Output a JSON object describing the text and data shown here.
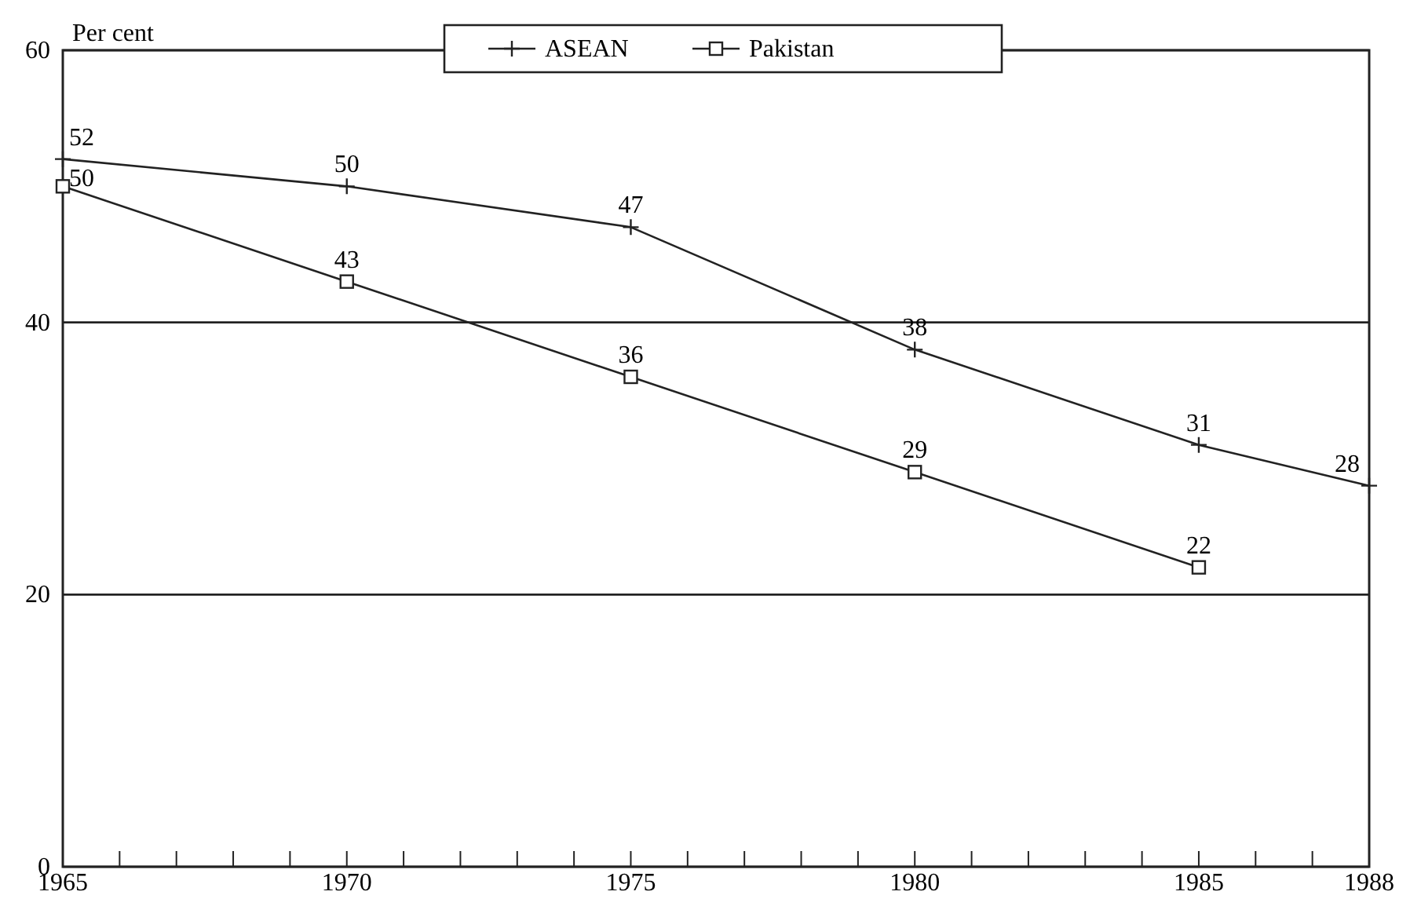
{
  "chart_data": {
    "type": "line",
    "ylabel": "Per cent",
    "x": [
      1965,
      1970,
      1975,
      1980,
      1985,
      1988
    ],
    "series": [
      {
        "name": "ASEAN",
        "color": "#222222",
        "marker": "cross",
        "values": [
          52,
          50,
          47,
          38,
          31,
          28
        ]
      },
      {
        "name": "Pakistan",
        "color": "#222222",
        "marker": "square",
        "values": [
          50,
          43,
          36,
          29,
          22,
          null
        ]
      }
    ],
    "xlim": [
      1965,
      1988
    ],
    "xticks": [
      1965,
      {
        "value": 1966,
        "label": null
      },
      {
        "value": 1967,
        "label": null
      },
      {
        "value": 1968,
        "label": null
      },
      {
        "value": 1969,
        "label": null
      },
      1970,
      {
        "value": 1971,
        "label": null
      },
      {
        "value": 1972,
        "label": null
      },
      {
        "value": 1973,
        "label": null
      },
      {
        "value": 1974,
        "label": null
      },
      1975,
      {
        "value": 1976,
        "label": null
      },
      {
        "value": 1977,
        "label": null
      },
      {
        "value": 1978,
        "label": null
      },
      {
        "value": 1979,
        "label": null
      },
      1980,
      {
        "value": 1981,
        "label": null
      },
      {
        "value": 1982,
        "label": null
      },
      {
        "value": 1983,
        "label": null
      },
      {
        "value": 1984,
        "label": null
      },
      1985,
      {
        "value": 1986,
        "label": null
      },
      {
        "value": 1987,
        "label": null
      },
      1988
    ],
    "ylim": [
      0,
      60
    ],
    "yticks": [
      0,
      20,
      40,
      60
    ],
    "grid": "y",
    "legend": "top",
    "data_labels": true,
    "line_style": "solid"
  }
}
